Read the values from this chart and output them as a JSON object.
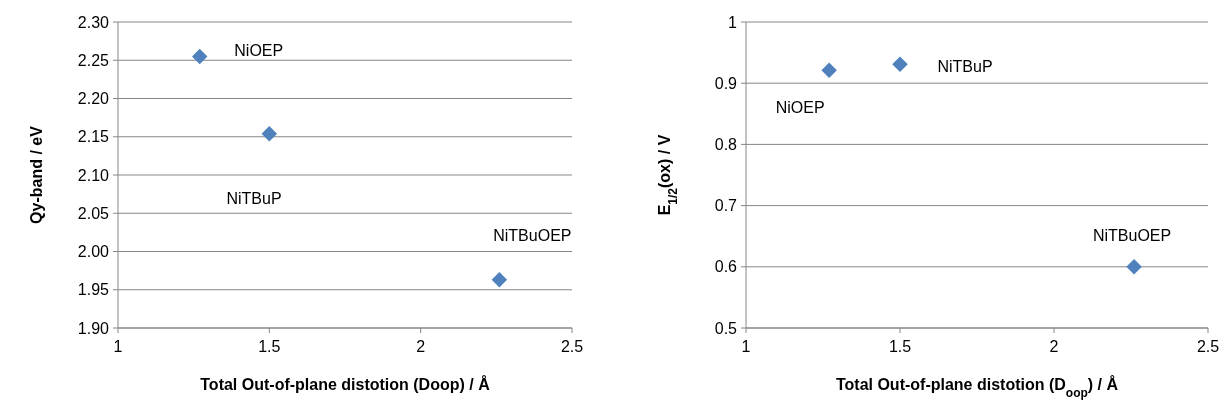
{
  "chart_data": [
    {
      "type": "scatter",
      "xlabel": "Total Out-of-plane distotion (Doop) / Å",
      "ylabel": "Qy-band / eV",
      "series": [
        {
          "color": "#4f81bd",
          "x": [
            1.27,
            1.5,
            2.26
          ],
          "values": [
            2.255,
            2.154,
            1.963
          ]
        }
      ],
      "xlim": [
        1,
        2.5
      ],
      "xticks": [
        1,
        1.5,
        2,
        2.5
      ],
      "ylim": [
        1.9,
        2.3
      ],
      "yticks": [
        {
          "value": 1.9,
          "label": "1.90"
        },
        {
          "value": 1.95,
          "label": "1.95"
        },
        {
          "value": 2.0,
          "label": "2.00"
        },
        {
          "value": 2.05,
          "label": "2.05"
        },
        {
          "value": 2.1,
          "label": "2.10"
        },
        {
          "value": 2.15,
          "label": "2.15"
        },
        {
          "value": 2.2,
          "label": "2.20"
        },
        {
          "value": 2.25,
          "label": "2.25"
        },
        {
          "value": 2.3,
          "label": "2.30"
        }
      ],
      "grid": "y",
      "marker": "diamond",
      "annotations": [
        {
          "text": "NiOEP",
          "x": 1.27,
          "y": 2.255
        },
        "NiTBuP",
        {
          "text": "NiTBuOEP",
          "x": 2.26,
          "y": 1.963
        }
      ]
    },
    {
      "type": "scatter",
      "xlabel": "Total Out-of-plane distotion (D$_{oop}$) / Å",
      "ylabel": "E$_{1/2}$(ox) / V",
      "series": [
        {
          "color": "#4f81bd",
          "x": [
            1.27,
            1.5,
            2.26
          ],
          "values": [
            0.921,
            0.931,
            0.6
          ]
        }
      ],
      "xlim": [
        1,
        2.5
      ],
      "xticks": [
        1,
        1.5,
        2,
        2.5
      ],
      "ylim": [
        0.5,
        1
      ],
      "yticks": [
        0.5,
        0.6,
        0.7,
        0.8,
        0.9,
        1
      ],
      "grid": "y",
      "marker": "diamond",
      "annotations": [
        {
          "text": "NiOEP",
          "x": 1.27,
          "y": 0.921
        },
        {
          "text": "NiTBuP",
          "x": 1.5,
          "y": 0.931
        },
        {
          "text": "NiTBuOEP",
          "x": 2.26,
          "y": 0.6
        }
      ]
    }
  ]
}
